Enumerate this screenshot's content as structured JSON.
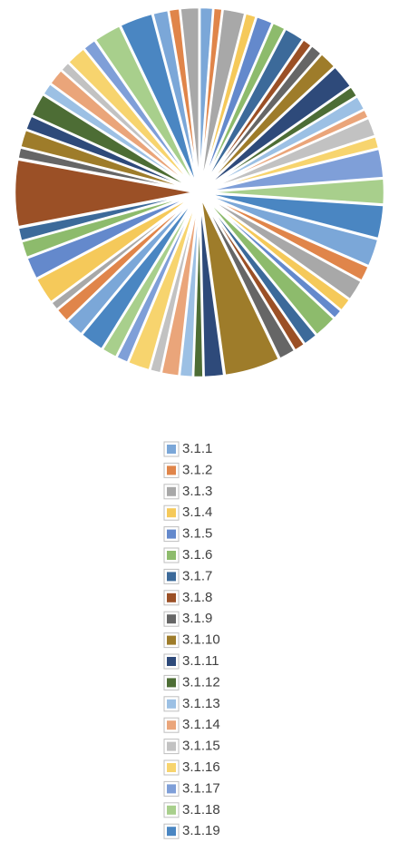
{
  "chart_data": {
    "type": "pie",
    "categories": [
      "3.1.1",
      "3.1.2",
      "3.1.3",
      "3.1.4",
      "3.1.5",
      "3.1.6",
      "3.1.7",
      "3.1.8",
      "3.1.9",
      "3.1.10",
      "3.1.11",
      "3.1.12",
      "3.1.13",
      "3.1.14",
      "3.1.15",
      "3.1.16",
      "3.1.17",
      "3.1.18",
      "3.1.19",
      null,
      null,
      null,
      null,
      null,
      null,
      null,
      null,
      null,
      null,
      null,
      null,
      null,
      null,
      null,
      null,
      null,
      null,
      null,
      null,
      null,
      null,
      null,
      null,
      null,
      null,
      null,
      null,
      null,
      null,
      null,
      null,
      null,
      null,
      null,
      null,
      null,
      null,
      null,
      null,
      null
    ],
    "values": [
      1.2,
      0.8,
      2.0,
      1.0,
      1.5,
      1.2,
      1.8,
      0.9,
      1.1,
      1.6,
      2.2,
      1.0,
      1.3,
      0.8,
      1.7,
      1.1,
      2.6,
      2.3,
      3.0,
      2.5,
      1.4,
      1.9,
      1.2,
      0.9,
      2.1,
      1.3,
      1.0,
      1.5,
      5.0,
      1.8,
      0.9,
      1.2,
      1.6,
      1.0,
      2.0,
      1.1,
      1.4,
      2.2,
      1.7,
      1.3,
      0.8,
      2.4,
      2.0,
      1.5,
      1.2,
      6.0,
      1.0,
      1.6,
      1.3,
      2.1,
      1.1,
      1.5,
      0.9,
      1.8,
      1.2,
      2.5,
      3.0,
      1.4,
      1.0,
      1.7
    ],
    "colors": [
      "#7ba7d8",
      "#e0854a",
      "#a8a8a8",
      "#f5c95a",
      "#6489cc",
      "#8dbb6c",
      "#3c6a9a",
      "#9b5026",
      "#666666",
      "#9e7c2a",
      "#2e4a7a",
      "#4d6d35",
      "#9cc0e4",
      "#eaa57a",
      "#c2c2c2",
      "#f7d46e",
      "#7f9fd8",
      "#a8cf8c",
      "#4a86c2"
    ],
    "legend": "bottom"
  }
}
